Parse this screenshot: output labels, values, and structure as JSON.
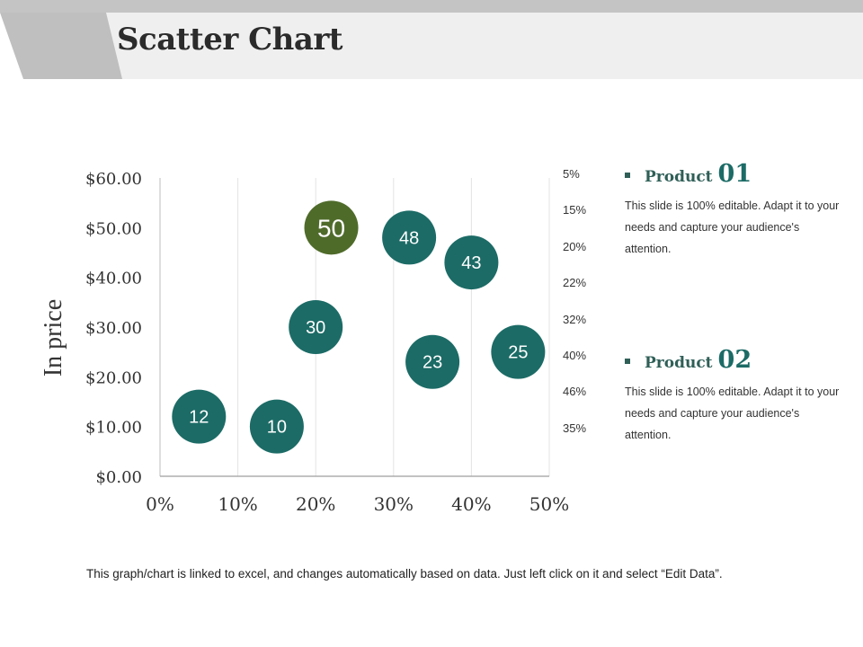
{
  "page": {
    "title": "Scatter Chart"
  },
  "chart_data": {
    "type": "scatter",
    "title": "",
    "xlabel": "",
    "ylabel": "In price",
    "xlim": [
      0,
      50
    ],
    "ylim": [
      0,
      60
    ],
    "x_ticks": [
      "0%",
      "10%",
      "20%",
      "30%",
      "40%",
      "50%"
    ],
    "y_ticks": [
      "$0.00",
      "$10.00",
      "$20.00",
      "$30.00",
      "$40.00",
      "$50.00",
      "$60.00"
    ],
    "right_axis_labels": [
      "5%",
      "15%",
      "20%",
      "22%",
      "32%",
      "40%",
      "46%",
      "35%"
    ],
    "grid": "vertical",
    "series": [
      {
        "name": "Product 01",
        "color": "#1c6b66",
        "points": [
          {
            "x": 5,
            "y": 12,
            "label": "12"
          },
          {
            "x": 15,
            "y": 10,
            "label": "10"
          },
          {
            "x": 20,
            "y": 30,
            "label": "30"
          },
          {
            "x": 32,
            "y": 48,
            "label": "48"
          },
          {
            "x": 40,
            "y": 43,
            "label": "43"
          },
          {
            "x": 35,
            "y": 23,
            "label": "23"
          },
          {
            "x": 46,
            "y": 25,
            "label": "25"
          }
        ]
      },
      {
        "name": "Product 02",
        "color": "#4f6b2a",
        "points": [
          {
            "x": 22,
            "y": 50,
            "label": "50"
          }
        ]
      }
    ]
  },
  "products": [
    {
      "name": "Product",
      "number": "01",
      "description": "This slide is 100% editable. Adapt it to your needs and capture your audience's attention."
    },
    {
      "name": "Product",
      "number": "02",
      "description": "This slide is 100% editable. Adapt it to your needs and capture your audience's attention."
    }
  ],
  "footer": {
    "text": "This graph/chart is linked to excel, and changes automatically based on data. Just left click on it and select “Edit Data”."
  }
}
